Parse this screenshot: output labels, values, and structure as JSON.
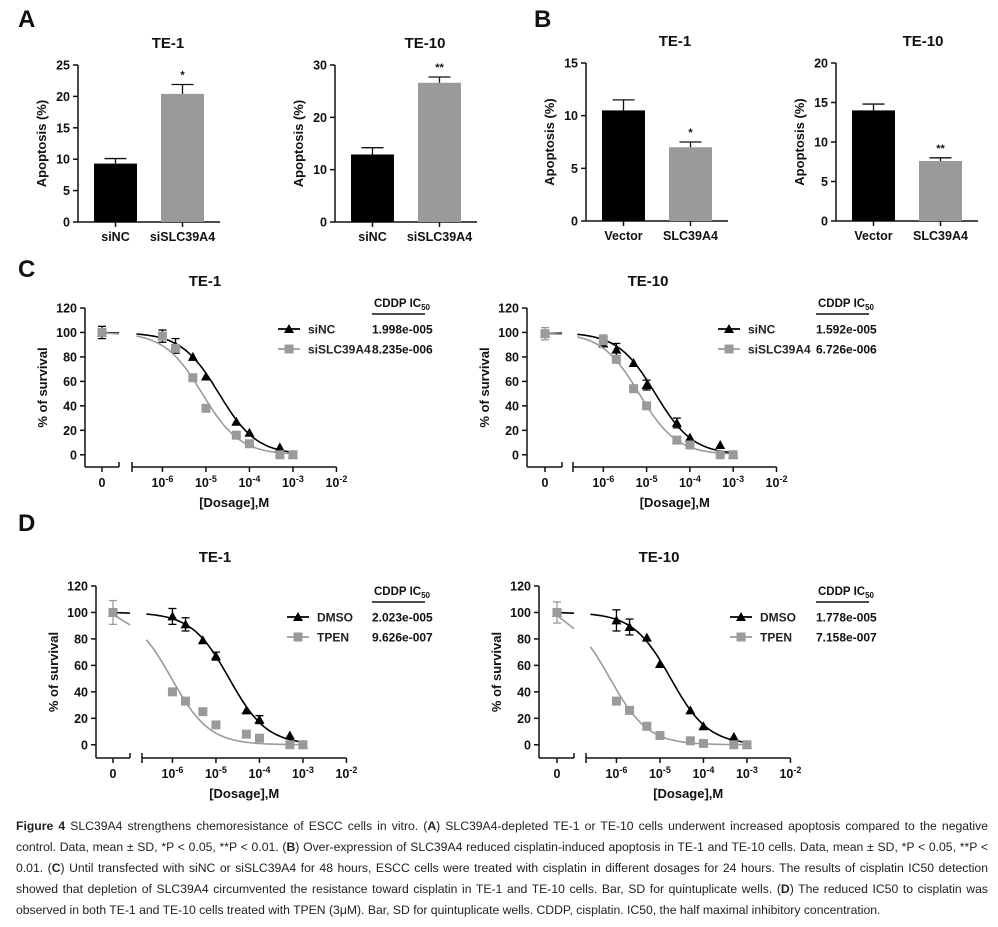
{
  "panels": {
    "A": "A",
    "B": "B",
    "C": "C",
    "D": "D"
  },
  "chart_data": [
    {
      "id": "A1",
      "panel": "A",
      "type": "bar",
      "title": "TE-1",
      "ylabel": "Apoptosis (%)",
      "ylim": [
        0,
        25
      ],
      "yticks": [
        0,
        5,
        10,
        15,
        20,
        25
      ],
      "categories": [
        "siNC",
        "siSLC39A4"
      ],
      "values": [
        9.3,
        20.4
      ],
      "errors": [
        0.8,
        1.5
      ],
      "colors": [
        "#000000",
        "#9a9a9a"
      ],
      "annotations": [
        "",
        "*"
      ]
    },
    {
      "id": "A2",
      "panel": "A",
      "type": "bar",
      "title": "TE-10",
      "ylabel": "Apoptosis (%)",
      "ylim": [
        0,
        30
      ],
      "yticks": [
        0,
        10,
        20,
        30
      ],
      "categories": [
        "siNC",
        "siSLC39A4"
      ],
      "values": [
        12.9,
        26.6
      ],
      "errors": [
        1.3,
        1.1
      ],
      "colors": [
        "#000000",
        "#9a9a9a"
      ],
      "annotations": [
        "",
        "**"
      ]
    },
    {
      "id": "B1",
      "panel": "B",
      "type": "bar",
      "title": "TE-1",
      "ylabel": "Apoptosis (%)",
      "ylim": [
        0,
        15
      ],
      "yticks": [
        0,
        5,
        10,
        15
      ],
      "categories": [
        "Vector",
        "SLC39A4"
      ],
      "values": [
        10.5,
        7.0
      ],
      "errors": [
        1.0,
        0.5
      ],
      "colors": [
        "#000000",
        "#9a9a9a"
      ],
      "annotations": [
        "",
        "*"
      ]
    },
    {
      "id": "B2",
      "panel": "B",
      "type": "bar",
      "title": "TE-10",
      "ylabel": "Apoptosis (%)",
      "ylim": [
        0,
        20
      ],
      "yticks": [
        0,
        5,
        10,
        15,
        20
      ],
      "categories": [
        "Vector",
        "SLC39A4"
      ],
      "values": [
        14.0,
        7.6
      ],
      "errors": [
        0.8,
        0.4
      ],
      "colors": [
        "#000000",
        "#9a9a9a"
      ],
      "annotations": [
        "",
        "**"
      ]
    },
    {
      "id": "C1",
      "panel": "C",
      "type": "line",
      "title": "TE-1",
      "xlabel": "[Dosage],M",
      "ylabel": "% of survival",
      "ylim": [
        -10,
        120
      ],
      "yticks": [
        0,
        20,
        40,
        60,
        80,
        100,
        120
      ],
      "xticks_log": [
        -6,
        -5,
        -4,
        -3,
        -2
      ],
      "xtick_zero_label": "0",
      "x": [
        1e-06,
        2e-06,
        5e-06,
        1e-05,
        5e-05,
        0.0001,
        0.0005,
        0.001
      ],
      "ic50_header": "CDDP IC",
      "ic50_sub": "50",
      "series": [
        {
          "name": "siNC",
          "color": "#000000",
          "marker": "triangle",
          "control": 100,
          "control_err": 5,
          "values": [
            97,
            89,
            80,
            64,
            27,
            18,
            6,
            0
          ],
          "errors": [
            5,
            6,
            0,
            0,
            0,
            0,
            0,
            0
          ],
          "ic50": "1.998e-005",
          "ic50_value": 1.998e-05
        },
        {
          "name": "siSLC39A4",
          "color": "#9a9a9a",
          "marker": "square",
          "control": 100,
          "control_err": 0,
          "values": [
            97,
            87,
            63,
            38,
            16,
            9,
            0,
            0
          ],
          "errors": [
            0,
            0,
            0,
            0,
            0,
            0,
            0,
            0
          ],
          "ic50": "8.235e-006",
          "ic50_value": 8.235e-06
        }
      ]
    },
    {
      "id": "C2",
      "panel": "C",
      "type": "line",
      "title": "TE-10",
      "xlabel": "[Dosage],M",
      "ylabel": "% of survival",
      "ylim": [
        -10,
        120
      ],
      "yticks": [
        0,
        20,
        40,
        60,
        80,
        100,
        120
      ],
      "xticks_log": [
        -6,
        -5,
        -4,
        -3,
        -2
      ],
      "xtick_zero_label": "0",
      "x": [
        1e-06,
        2e-06,
        5e-06,
        1e-05,
        5e-05,
        0.0001,
        0.0005,
        0.001
      ],
      "ic50_header": "CDDP IC",
      "ic50_sub": "50",
      "series": [
        {
          "name": "siNC",
          "color": "#000000",
          "marker": "triangle",
          "control": 99,
          "control_err": 0,
          "values": [
            91,
            86,
            75,
            57,
            26,
            14,
            8,
            0
          ],
          "errors": [
            0,
            5,
            0,
            4,
            4,
            0,
            0,
            0
          ],
          "ic50": "1.592e-005",
          "ic50_value": 1.592e-05
        },
        {
          "name": "siSLC39A4",
          "color": "#9a9a9a",
          "marker": "square",
          "control": 99,
          "control_err": 5,
          "values": [
            94,
            78,
            54,
            40,
            12,
            8,
            0,
            0
          ],
          "errors": [
            4,
            0,
            0,
            0,
            0,
            0,
            0,
            0
          ],
          "ic50": "6.726e-006",
          "ic50_value": 6.726e-06
        }
      ]
    },
    {
      "id": "D1",
      "panel": "D",
      "type": "line",
      "title": "TE-1",
      "xlabel": "[Dosage],M",
      "ylabel": "% of survival",
      "ylim": [
        -10,
        120
      ],
      "yticks": [
        0,
        20,
        40,
        60,
        80,
        100,
        120
      ],
      "xticks_log": [
        -6,
        -5,
        -4,
        -3,
        -2
      ],
      "xtick_zero_label": "0",
      "x": [
        1e-06,
        2e-06,
        5e-06,
        1e-05,
        5e-05,
        0.0001,
        0.0005,
        0.001
      ],
      "ic50_header": "CDDP IC",
      "ic50_sub": "50",
      "series": [
        {
          "name": "DMSO",
          "color": "#000000",
          "marker": "triangle",
          "control": 100,
          "control_err": 0,
          "values": [
            97,
            91,
            79,
            67,
            26,
            19,
            7,
            0
          ],
          "errors": [
            6,
            5,
            0,
            3,
            0,
            3,
            0,
            0
          ],
          "ic50": "2.023e-005",
          "ic50_value": 2.023e-05
        },
        {
          "name": "TPEN",
          "color": "#9a9a9a",
          "marker": "square",
          "control": 100,
          "control_err": 9,
          "values": [
            40,
            33,
            25,
            15,
            8,
            5,
            0,
            0
          ],
          "errors": [
            0,
            0,
            0,
            0,
            0,
            0,
            0,
            0
          ],
          "ic50": "9.626e-007",
          "ic50_value": 9.626e-07
        }
      ]
    },
    {
      "id": "D2",
      "panel": "D",
      "type": "line",
      "title": "TE-10",
      "xlabel": "[Dosage],M",
      "ylabel": "% of survival",
      "ylim": [
        -10,
        120
      ],
      "yticks": [
        0,
        20,
        40,
        60,
        80,
        100,
        120
      ],
      "xticks_log": [
        -6,
        -5,
        -4,
        -3,
        -2
      ],
      "xtick_zero_label": "0",
      "x": [
        1e-06,
        2e-06,
        5e-06,
        1e-05,
        5e-05,
        0.0001,
        0.0005,
        0.001
      ],
      "ic50_header": "CDDP IC",
      "ic50_sub": "50",
      "series": [
        {
          "name": "DMSO",
          "color": "#000000",
          "marker": "triangle",
          "control": 100,
          "control_err": 0,
          "values": [
            94,
            89,
            81,
            61,
            26,
            14,
            6,
            0
          ],
          "errors": [
            8,
            6,
            0,
            0,
            0,
            0,
            0,
            0
          ],
          "ic50": "1.778e-005",
          "ic50_value": 1.778e-05
        },
        {
          "name": "TPEN",
          "color": "#9a9a9a",
          "marker": "square",
          "control": 100,
          "control_err": 8,
          "values": [
            33,
            26,
            14,
            7,
            3,
            1,
            0,
            0
          ],
          "errors": [
            0,
            0,
            0,
            0,
            0,
            0,
            0,
            0
          ],
          "ic50": "7.158e-007",
          "ic50_value": 7.158e-07
        }
      ]
    }
  ],
  "caption": {
    "label": "Figure 4",
    "parts": [
      {
        "t": " SLC39A4 strengthens chemoresistance of ESCC cells in vitro. (",
        "b": false
      },
      {
        "t": "A",
        "b": true
      },
      {
        "t": ") SLC39A4-depleted TE-1 or TE-10 cells underwent increased apoptosis compared to the negative control. Data, mean ± SD, *P < 0.05, **P < 0.01. (",
        "b": false
      },
      {
        "t": "B",
        "b": true
      },
      {
        "t": ") Over-expression of SLC39A4 reduced cisplatin-induced apoptosis in TE-1 and TE-10 cells. Data, mean ± SD, *P < 0.05, **P < 0.01. (",
        "b": false
      },
      {
        "t": "C",
        "b": true
      },
      {
        "t": ") Until transfected with siNC or siSLC39A4 for 48 hours, ESCC cells were treated with cisplatin in different dosages for 24 hours. The results of cisplatin IC50 detection showed that depletion of SLC39A4 circumvented the resistance toward cisplatin in TE-1 and TE-10 cells. Bar, SD for quintuplicate wells. (",
        "b": false
      },
      {
        "t": "D",
        "b": true
      },
      {
        "t": ") The reduced IC50 to cisplatin was observed in both TE-1 and TE-10 cells treated with TPEN (3μM). Bar, SD for quintuplicate wells. CDDP, cisplatin. IC50, the half maximal inhibitory concentration.",
        "b": false
      }
    ]
  }
}
